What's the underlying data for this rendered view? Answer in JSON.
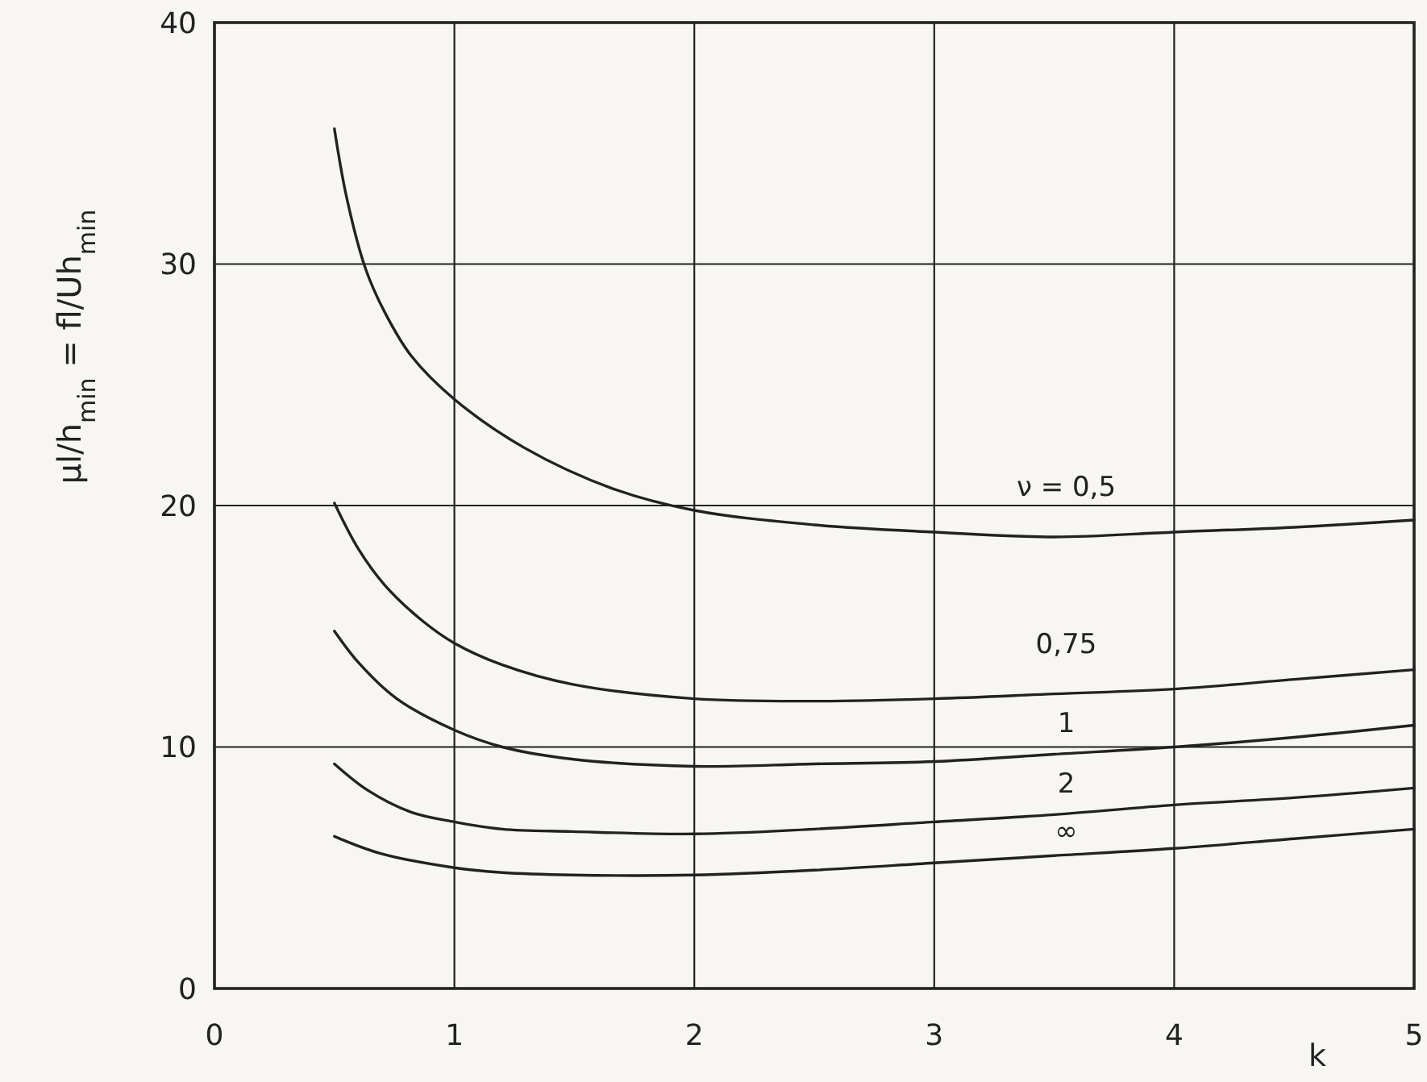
{
  "chart_data": {
    "type": "line",
    "xlabel": "k",
    "ylabel": "μl/h$_{min}$ = fl/Uh$_{min}$",
    "xlim": [
      0,
      5
    ],
    "ylim": [
      0,
      40
    ],
    "xticks": [
      0,
      1,
      2,
      3,
      4,
      5
    ],
    "yticks": [
      0,
      10,
      20,
      30,
      40
    ],
    "grid": true,
    "series": [
      {
        "name": "ν = 0,5",
        "color": "#222222",
        "x": [
          0.5,
          0.55,
          0.63,
          0.71,
          0.82,
          1,
          1.29,
          1.66,
          2,
          2.5,
          3,
          3.5,
          4,
          4.5,
          5
        ],
        "values": [
          35.6,
          32.8,
          29.8,
          28.0,
          26.2,
          24.4,
          22.4,
          20.7,
          19.8,
          19.2,
          18.9,
          18.7,
          18.9,
          19.1,
          19.4
        ]
      },
      {
        "name": "0,75",
        "color": "#222222",
        "x": [
          0.5,
          0.6,
          0.71,
          0.87,
          1,
          1.2,
          1.49,
          2,
          2.5,
          3,
          3.5,
          4,
          4.5,
          5
        ],
        "values": [
          20.1,
          18.2,
          16.7,
          15.2,
          14.3,
          13.4,
          12.6,
          12.0,
          11.9,
          12.0,
          12.2,
          12.4,
          12.8,
          13.2
        ]
      },
      {
        "name": "1",
        "color": "#222222",
        "x": [
          0.5,
          0.6,
          0.76,
          1,
          1.2,
          1.49,
          2,
          2.5,
          3,
          3.5,
          4,
          4.5,
          5
        ],
        "values": [
          14.8,
          13.5,
          12.0,
          10.7,
          10.0,
          9.5,
          9.2,
          9.3,
          9.4,
          9.7,
          10.0,
          10.4,
          10.9
        ]
      },
      {
        "name": "2",
        "color": "#222222",
        "x": [
          0.5,
          0.64,
          0.82,
          1,
          1.2,
          1.49,
          2,
          2.5,
          3,
          3.5,
          4,
          4.5,
          5
        ],
        "values": [
          9.3,
          8.2,
          7.3,
          6.9,
          6.6,
          6.5,
          6.4,
          6.6,
          6.9,
          7.2,
          7.6,
          7.9,
          8.3
        ]
      },
      {
        "name": "∞",
        "color": "#222222",
        "x": [
          0.5,
          0.69,
          1,
          1.2,
          1.49,
          2,
          2.5,
          3,
          3.5,
          4,
          4.5,
          5
        ],
        "values": [
          6.3,
          5.6,
          5.0,
          4.8,
          4.7,
          4.7,
          4.9,
          5.2,
          5.5,
          5.8,
          6.2,
          6.6
        ]
      }
    ]
  }
}
